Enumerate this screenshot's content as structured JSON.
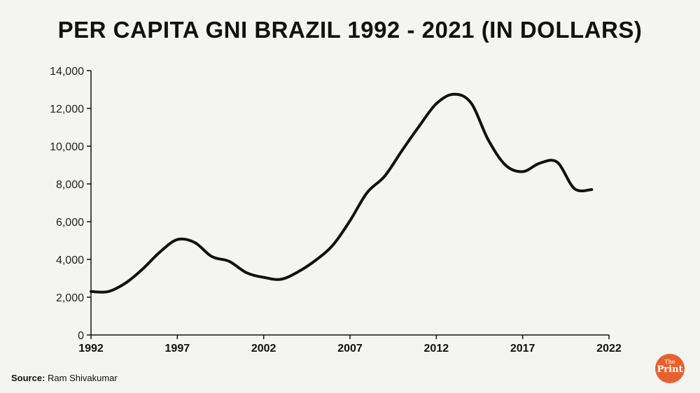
{
  "chart_data": {
    "type": "line",
    "title": "PER CAPITA GNI BRAZIL 1992 - 2021 (IN DOLLARS)",
    "xlabel": "",
    "ylabel": "",
    "xlim": [
      1992,
      2022
    ],
    "ylim": [
      0,
      14000
    ],
    "x_ticks": [
      "1992",
      "1997",
      "2002",
      "2007",
      "2012",
      "2017",
      "2022"
    ],
    "y_ticks": [
      "0",
      "2,000",
      "4,000",
      "6,000",
      "8,000",
      "10,000",
      "12,000",
      "14,000"
    ],
    "grid": false,
    "legend": "none",
    "line_color": "#111111",
    "series": [
      {
        "x": [
          1992,
          1993,
          1994,
          1995,
          1996,
          1997,
          1998,
          1999,
          2000,
          2001,
          2002,
          2003,
          2004,
          2005,
          2006,
          2007,
          2008,
          2009,
          2010,
          2011,
          2012,
          2013,
          2014,
          2015,
          2016,
          2017,
          2018,
          2019,
          2020,
          2021
        ],
        "values": [
          2300,
          2300,
          2750,
          3500,
          4400,
          5050,
          4900,
          4150,
          3900,
          3300,
          3050,
          2950,
          3350,
          3950,
          4750,
          6050,
          7550,
          8400,
          9750,
          11050,
          12250,
          12750,
          12300,
          10350,
          9000,
          8650,
          9100,
          9150,
          7750,
          7700
        ]
      }
    ]
  },
  "source": {
    "label": "Source:",
    "text": "Ram Shivakumar"
  },
  "logo": {
    "top": "The",
    "bottom": "Print",
    "color": "#e8612c"
  }
}
